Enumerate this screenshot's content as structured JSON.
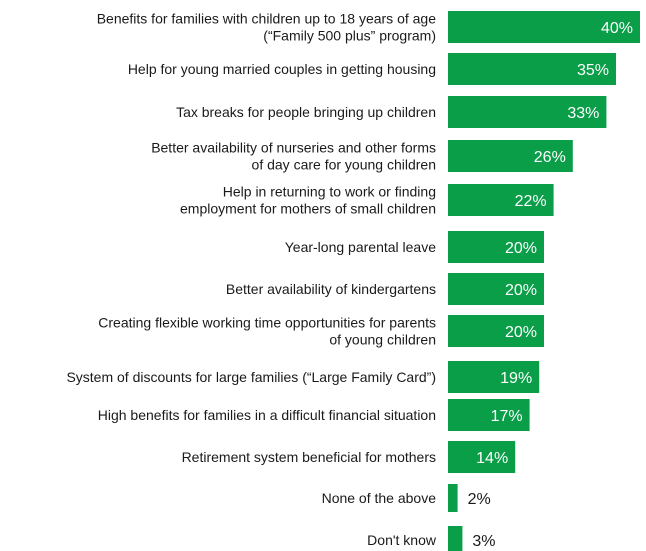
{
  "chart_data": {
    "type": "bar",
    "orientation": "horizontal",
    "title": "",
    "xlabel": "",
    "ylabel": "",
    "grid": false,
    "legend": "none",
    "value_suffix": "%",
    "xlim": [
      0,
      40
    ],
    "bar_color": "#0a9e49",
    "categories": [
      [
        "Benefits for families with children up to 18 years of age",
        "(“Family 500 plus” program)"
      ],
      [
        "Help for young married couples in getting housing"
      ],
      [
        "Tax breaks for people bringing up children"
      ],
      [
        "Better availability of nurseries and other forms",
        "of day care for young children"
      ],
      [
        "Help in returning to work or finding",
        "employment for mothers of small children"
      ],
      [
        "Year-long parental leave"
      ],
      [
        "Better availability of kindergartens"
      ],
      [
        "Creating flexible working time opportunities for parents",
        "of young children"
      ],
      [
        "System of discounts for large families (“Large Family Card”)"
      ],
      [
        "High benefits for families in a difficult financial situation"
      ],
      [
        "Retirement system beneficial for mothers"
      ],
      [
        "None of the above"
      ],
      [
        "Don't know"
      ]
    ],
    "values": [
      40,
      35,
      33,
      26,
      22,
      20,
      20,
      20,
      19,
      17,
      14,
      2,
      3
    ],
    "data_labels": [
      "40%",
      "35%",
      "33%",
      "26%",
      "22%",
      "20%",
      "20%",
      "20%",
      "19%",
      "17%",
      "14%",
      "2%",
      "3%"
    ]
  }
}
